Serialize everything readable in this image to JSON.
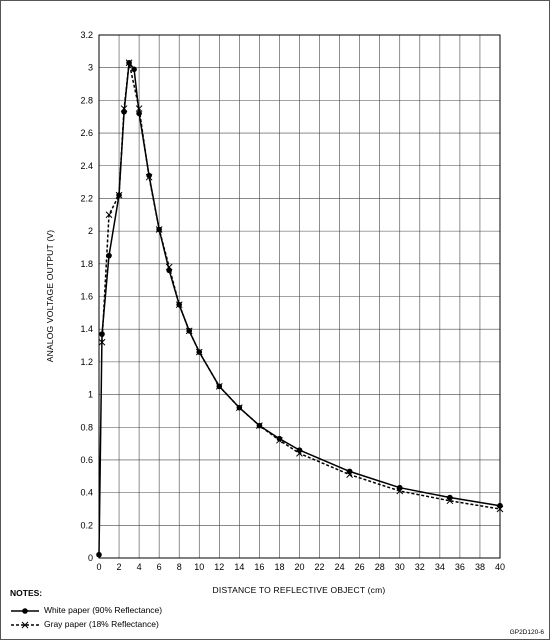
{
  "chart_data": {
    "type": "line",
    "title": "",
    "xlabel": "DISTANCE TO REFLECTIVE OBJECT (cm)",
    "ylabel": "ANALOG VOLTAGE OUTPUT (V)",
    "xlim": [
      0,
      40
    ],
    "ylim": [
      0,
      3.2
    ],
    "x_ticks": [
      0,
      2,
      4,
      6,
      8,
      10,
      12,
      14,
      16,
      18,
      20,
      22,
      24,
      26,
      28,
      30,
      32,
      34,
      36,
      38,
      40
    ],
    "y_ticks": [
      0,
      0.2,
      0.4,
      0.6,
      0.8,
      1,
      1.2,
      1.4,
      1.6,
      1.8,
      2,
      2.2,
      2.4,
      2.6,
      2.8,
      3,
      3.2
    ],
    "grid": true,
    "series": [
      {
        "name": "White paper (90% Reflectance)",
        "line_style": "solid",
        "marker": "dot",
        "points": [
          [
            0,
            0.02
          ],
          [
            0.3,
            1.37
          ],
          [
            1,
            1.85
          ],
          [
            2,
            2.22
          ],
          [
            2.5,
            2.73
          ],
          [
            3,
            3.03
          ],
          [
            3.5,
            2.99
          ],
          [
            4,
            2.72
          ],
          [
            5,
            2.34
          ],
          [
            6,
            2.01
          ],
          [
            7,
            1.76
          ],
          [
            8,
            1.55
          ],
          [
            9,
            1.39
          ],
          [
            10,
            1.26
          ],
          [
            12,
            1.05
          ],
          [
            14,
            0.92
          ],
          [
            16,
            0.81
          ],
          [
            18,
            0.73
          ],
          [
            20,
            0.66
          ],
          [
            25,
            0.53
          ],
          [
            30,
            0.43
          ],
          [
            35,
            0.37
          ],
          [
            40,
            0.32
          ]
        ]
      },
      {
        "name": "Gray paper (18% Reflectance)",
        "line_style": "dashed",
        "marker": "x",
        "points": [
          [
            0.3,
            1.32
          ],
          [
            1,
            2.1
          ],
          [
            2,
            2.22
          ],
          [
            2.5,
            2.75
          ],
          [
            3,
            3.03
          ],
          [
            4,
            2.75
          ],
          [
            5,
            2.33
          ],
          [
            6,
            2.01
          ],
          [
            7,
            1.78
          ],
          [
            8,
            1.55
          ],
          [
            9,
            1.39
          ],
          [
            10,
            1.26
          ],
          [
            12,
            1.05
          ],
          [
            14,
            0.92
          ],
          [
            16,
            0.81
          ],
          [
            18,
            0.72
          ],
          [
            20,
            0.64
          ],
          [
            25,
            0.51
          ],
          [
            30,
            0.41
          ],
          [
            35,
            0.35
          ],
          [
            40,
            0.3
          ]
        ]
      }
    ]
  },
  "notes": {
    "title": "NOTES:",
    "white_label": "White paper (90% Reflectance)",
    "gray_label": "Gray paper (18% Reflectance)"
  },
  "figure_code": "GP2D120-6"
}
